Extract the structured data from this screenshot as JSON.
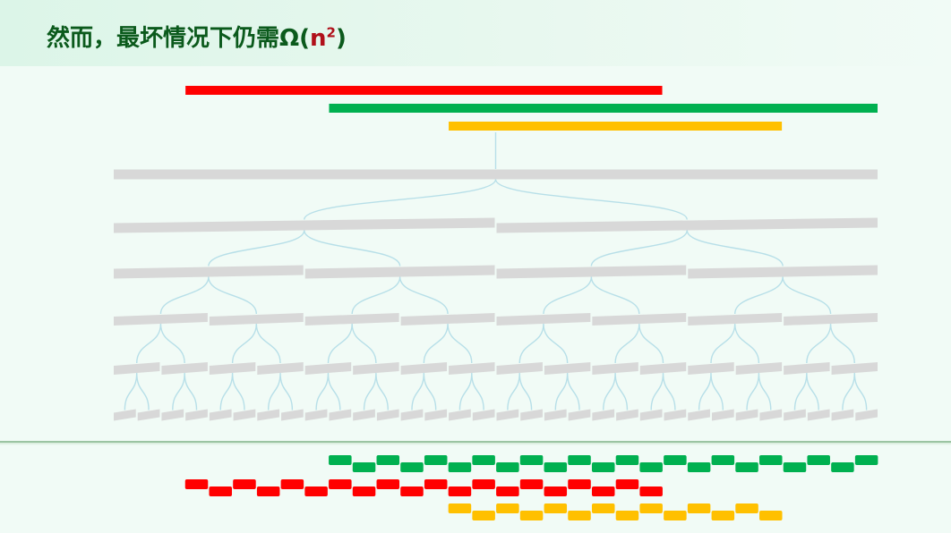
{
  "slide": {
    "title_text": "然而，最坏情况下仍需Ω",
    "title_paren_open": "(",
    "title_expr_base": "n",
    "title_expr_exp": "2",
    "title_paren_close": ")"
  },
  "colors": {
    "red": "#ff0000",
    "green": "#00b050",
    "yellow": "#ffc000",
    "tree_node": "#d8d8d8",
    "tree_edge": "#b7dfe8",
    "title": "#0b5a1c"
  },
  "tree": {
    "levels": 6
  },
  "query_bars": [
    {
      "name": "red",
      "leaf_start": 3,
      "leaf_end": 22
    },
    {
      "name": "green",
      "leaf_start": 9,
      "leaf_end": 31
    },
    {
      "name": "yellow",
      "leaf_start": 14,
      "leaf_end": 27
    }
  ],
  "fragment_rows": [
    {
      "name": "green",
      "leaf_start": 9,
      "leaf_end": 31
    },
    {
      "name": "red",
      "leaf_start": 3,
      "leaf_end": 22
    },
    {
      "name": "yellow",
      "leaf_start": 14,
      "leaf_end": 27
    }
  ]
}
